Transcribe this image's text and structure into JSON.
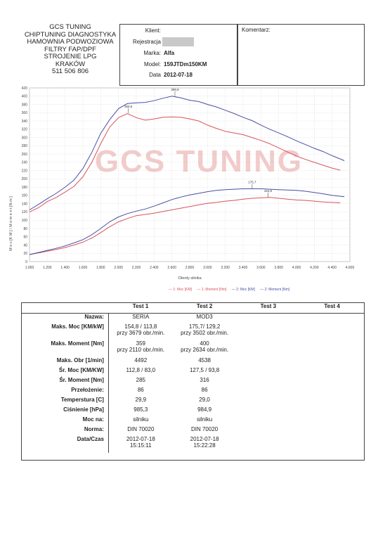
{
  "company": {
    "lines": [
      "GCS TUNING",
      "CHIPTUNING DIAGNOSTYKA",
      "HAMOWNIA PODWOZIOWA",
      "FILTRY FAP/DPF",
      "STROJENIE LPG",
      "KRAKÓW",
      "511 506 806"
    ]
  },
  "info": {
    "klient_label": "Klient:",
    "rejestracja_label": "Rejestracja",
    "marka_label": "Marka:",
    "marka": "Alfa",
    "model_label": "Model:",
    "model": "159JTDm150KM",
    "data_label": "Data",
    "data": "2012-07-18"
  },
  "comment_label": "Komentarz:",
  "watermark": "GCS TUNING",
  "chart_data": {
    "type": "line",
    "ylabel": "M o c  [K M ]  /  M o m e n t  [N m ]",
    "xlabel": "Obroty silnika",
    "xlim": [
      1000,
      4600
    ],
    "ylim": [
      0,
      420
    ],
    "xticks": [
      "1.000",
      "1.200",
      "1.400",
      "1.600",
      "1.800",
      "2.000",
      "2.200",
      "2.400",
      "2.600",
      "2.800",
      "3.000",
      "3.200",
      "3.400",
      "3.600",
      "3.800",
      "4.000",
      "4.200",
      "4.400",
      "4.600"
    ],
    "yticks": [
      "0",
      "20",
      "40",
      "60",
      "80",
      "100",
      "120",
      "140",
      "160",
      "180",
      "200",
      "220",
      "240",
      "260",
      "280",
      "300",
      "320",
      "340",
      "360",
      "380",
      "400",
      "420"
    ],
    "annotations": [
      {
        "text": "359,5",
        "x": 2110,
        "y": 359
      },
      {
        "text": "399,9",
        "x": 2634,
        "y": 400
      },
      {
        "text": "175,7",
        "x": 3502,
        "y": 176
      },
      {
        "text": "154,8",
        "x": 3679,
        "y": 155
      }
    ],
    "series": [
      {
        "name": "1: Moc [KM]",
        "color": "#d9535b",
        "x": [
          1000,
          1100,
          1200,
          1300,
          1400,
          1500,
          1600,
          1700,
          1800,
          1900,
          2000,
          2100,
          2200,
          2300,
          2400,
          2500,
          2600,
          2700,
          2800,
          2900,
          3000,
          3100,
          3200,
          3300,
          3400,
          3500,
          3600,
          3700,
          3800,
          3900,
          4000,
          4100,
          4200,
          4300,
          4400,
          4492
        ],
        "y": [
          17,
          21,
          25,
          29,
          34,
          40,
          47,
          57,
          70,
          84,
          96,
          104,
          111,
          114,
          117,
          121,
          125,
          129,
          133,
          137,
          141,
          143,
          146,
          148,
          151,
          153,
          154,
          155,
          153,
          151,
          149,
          148,
          146,
          144,
          143,
          142
        ]
      },
      {
        "name": "1: Moment [Nm]",
        "color": "#d9535b",
        "x": [
          1000,
          1100,
          1200,
          1300,
          1400,
          1500,
          1600,
          1700,
          1800,
          1900,
          2000,
          2100,
          2200,
          2300,
          2400,
          2500,
          2600,
          2700,
          2800,
          2900,
          3000,
          3100,
          3200,
          3300,
          3400,
          3500,
          3600,
          3700,
          3800,
          3900,
          4000,
          4100,
          4200,
          4300,
          4400,
          4492
        ],
        "y": [
          120,
          130,
          145,
          155,
          168,
          182,
          205,
          240,
          285,
          325,
          348,
          358,
          348,
          342,
          345,
          349,
          350,
          349,
          345,
          340,
          330,
          322,
          315,
          311,
          307,
          300,
          293,
          285,
          275,
          265,
          255,
          247,
          240,
          233,
          226,
          221
        ]
      },
      {
        "name": "2: Moc [KM]",
        "color": "#4a4fa3",
        "x": [
          1000,
          1100,
          1200,
          1300,
          1400,
          1500,
          1600,
          1700,
          1800,
          1900,
          2000,
          2100,
          2200,
          2300,
          2400,
          2500,
          2600,
          2700,
          2800,
          2900,
          3000,
          3100,
          3200,
          3300,
          3400,
          3500,
          3600,
          3700,
          3800,
          3900,
          4000,
          4100,
          4200,
          4300,
          4400,
          4538
        ],
        "y": [
          17,
          22,
          27,
          32,
          38,
          45,
          53,
          65,
          80,
          96,
          108,
          116,
          122,
          127,
          134,
          142,
          150,
          156,
          161,
          165,
          169,
          172,
          174,
          175,
          176,
          176,
          176,
          175,
          174,
          173,
          172,
          170,
          167,
          164,
          160,
          157
        ]
      },
      {
        "name": "2: Moment [Nm]",
        "color": "#4a4fa3",
        "x": [
          1000,
          1100,
          1200,
          1300,
          1400,
          1500,
          1600,
          1700,
          1800,
          1900,
          2000,
          2100,
          2200,
          2300,
          2400,
          2500,
          2600,
          2700,
          2800,
          2900,
          3000,
          3100,
          3200,
          3300,
          3400,
          3500,
          3600,
          3700,
          3800,
          3900,
          4000,
          4100,
          4200,
          4300,
          4400,
          4538
        ],
        "y": [
          125,
          138,
          152,
          165,
          180,
          197,
          225,
          264,
          310,
          343,
          370,
          382,
          384,
          385,
          389,
          395,
          400,
          396,
          390,
          387,
          380,
          374,
          366,
          358,
          349,
          341,
          330,
          320,
          311,
          302,
          292,
          283,
          274,
          266,
          256,
          244
        ]
      }
    ]
  },
  "legend": [
    "— 1: Moc [KM]",
    "— 1: Moment [Nm]",
    "— 2: Moc [KM]",
    "— 2: Moment [Nm]"
  ],
  "table": {
    "headers": [
      "",
      "Test 1",
      "Test 2",
      "Test 3",
      "Test 4"
    ],
    "rows": [
      {
        "label": "Nazwa:",
        "t1": "SERIA",
        "t2": "MOD3"
      },
      {
        "label": "Maks. Moc [KM/kW]",
        "t1": "154,8 / 113,8",
        "t1b": "przy 3679 obr./min.",
        "t2": "175,7/ 129,2",
        "t2b": "przy 3502 obr./min."
      },
      {
        "label": "Maks. Moment [Nm]",
        "t1": "359",
        "t1b": "przy 2110 obr./min.",
        "t2": "400",
        "t2b": "przy 2634 obr./min."
      },
      {
        "label": "Maks. Obr [1/min]",
        "t1": "4492",
        "t2": "4538"
      },
      {
        "label": "Śr. Moc [KM/KW]",
        "t1": "112,8 / 83,0",
        "t2": "127,5 / 93,8"
      },
      {
        "label": "Śr. Moment [Nm]",
        "t1": "285",
        "t2": "316"
      },
      {
        "label": "Przełożenie:",
        "t1": "86",
        "t2": "86"
      },
      {
        "label": "Temperstura [C]",
        "t1": "29,9",
        "t2": "29,0"
      },
      {
        "label": "Ciśnienie [hPa]",
        "t1": "985,3",
        "t2": "984,9"
      },
      {
        "label": "Moc na:",
        "t1": "silniku",
        "t2": "silniku"
      },
      {
        "label": "Norma:",
        "t1": "DIN 70020",
        "t2": "DIN 70020"
      },
      {
        "label": "Data/Czas",
        "t1": "2012-07-18",
        "t1b": "15:15:11",
        "t2": "2012-07-18",
        "t2b": "15:22:28"
      }
    ]
  }
}
